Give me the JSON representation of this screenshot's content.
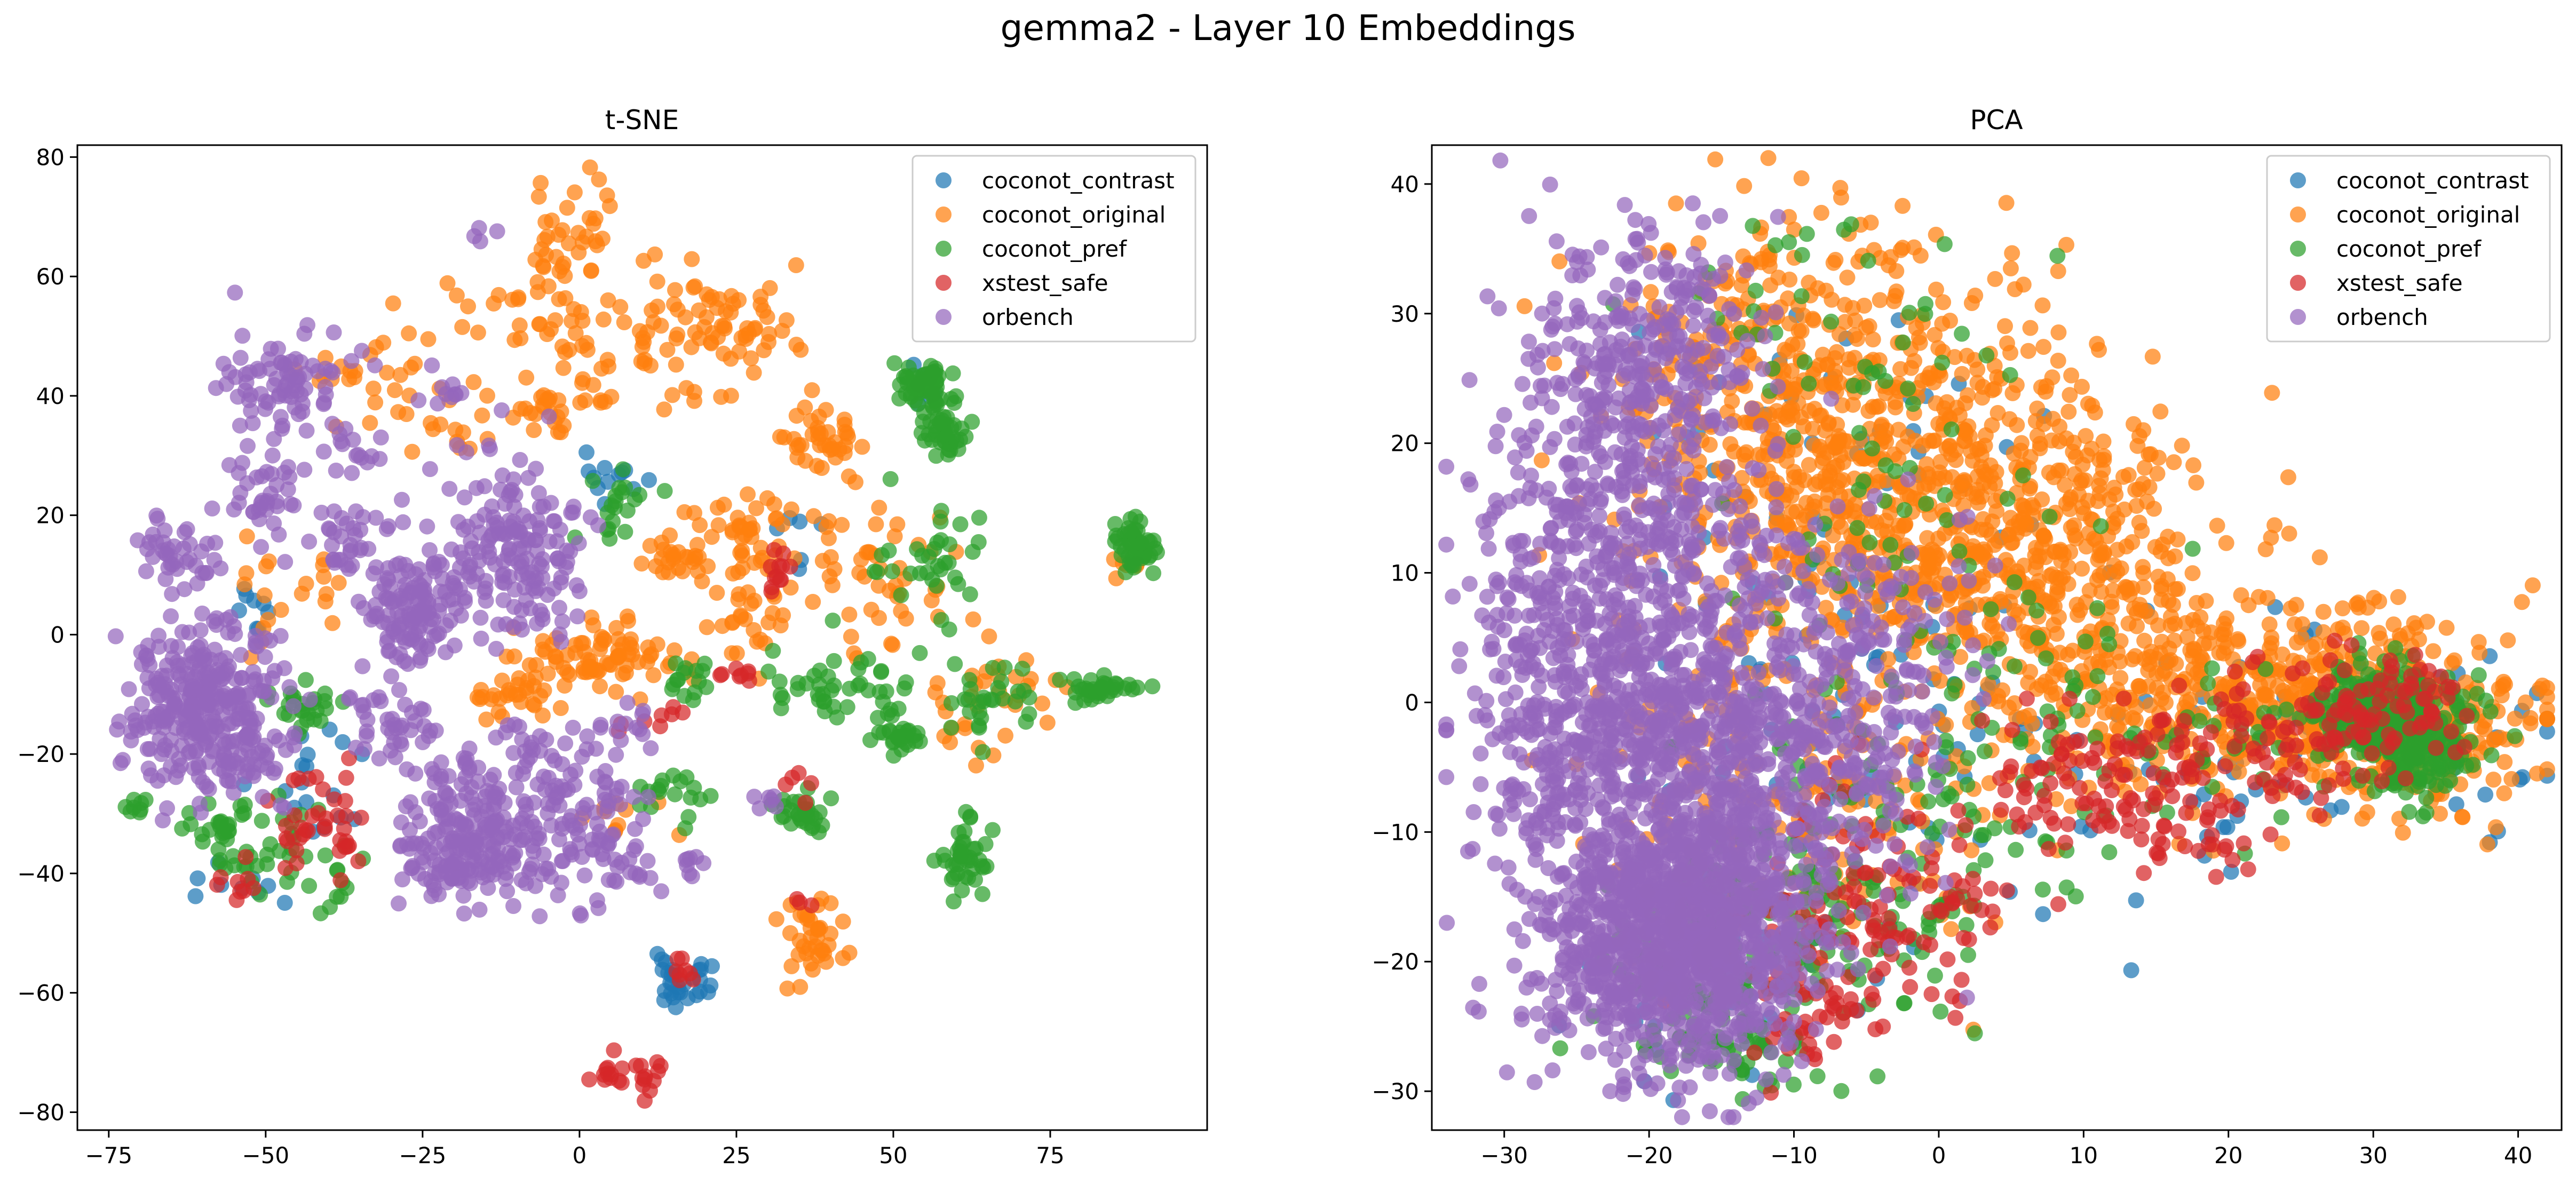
{
  "figure": {
    "title": "gemma2 - Layer 10 Embeddings"
  },
  "series_colors": {
    "coconot_contrast": "#1f77b4",
    "coconot_original": "#ff7f0e",
    "coconot_pref": "#2ca02c",
    "xstest_safe": "#d62728",
    "orbench": "#9467bd"
  },
  "chart_data": [
    {
      "type": "scatter",
      "title": "t-SNE",
      "xlabel": "",
      "ylabel": "",
      "xlim": [
        -80,
        100
      ],
      "ylim": [
        -83,
        82
      ],
      "xticks": [
        -75,
        -50,
        -25,
        0,
        25,
        50,
        75
      ],
      "xtick_labels": [
        "−75",
        "−50",
        "−25",
        "0",
        "25",
        "50",
        "75"
      ],
      "yticks": [
        -80,
        -60,
        -40,
        -20,
        0,
        20,
        40,
        60,
        80
      ],
      "ytick_labels": [
        "−80",
        "−60",
        "−40",
        "−20",
        "0",
        "20",
        "40",
        "60",
        "80"
      ],
      "grid": false,
      "legend_position": "top-right",
      "series": [
        {
          "name": "coconot_contrast",
          "clusters": [
            {
              "cx": 17,
              "cy": -58,
              "sx": 3,
              "sy": 2,
              "n": 30
            },
            {
              "cx": 5,
              "cy": 26,
              "sx": 3,
              "sy": 2,
              "n": 12
            },
            {
              "cx": -44,
              "cy": -25,
              "sx": 4,
              "sy": 6,
              "n": 18
            },
            {
              "cx": 56,
              "cy": 42,
              "sx": 2,
              "sy": 2,
              "n": 8
            },
            {
              "cx": -52,
              "cy": 2,
              "sx": 3,
              "sy": 3,
              "n": 8
            },
            {
              "cx": -55,
              "cy": -42,
              "sx": 3,
              "sy": 3,
              "n": 8
            },
            {
              "cx": 32,
              "cy": 15,
              "sx": 3,
              "sy": 3,
              "n": 6
            }
          ]
        },
        {
          "name": "coconot_original",
          "clusters": [
            {
              "cx": -2,
              "cy": 66,
              "sx": 3,
              "sy": 5,
              "n": 40
            },
            {
              "cx": -5,
              "cy": 52,
              "sx": 6,
              "sy": 4,
              "n": 35
            },
            {
              "cx": 14,
              "cy": 50,
              "sx": 6,
              "sy": 6,
              "n": 45
            },
            {
              "cx": 26,
              "cy": 52,
              "sx": 5,
              "sy": 6,
              "n": 40
            },
            {
              "cx": -32,
              "cy": 43,
              "sx": 6,
              "sy": 4,
              "n": 30
            },
            {
              "cx": -3,
              "cy": 38,
              "sx": 4,
              "sy": 3,
              "n": 30
            },
            {
              "cx": 38,
              "cy": 32,
              "sx": 3,
              "sy": 3,
              "n": 40
            },
            {
              "cx": 27,
              "cy": 18,
              "sx": 5,
              "sy": 4,
              "n": 50
            },
            {
              "cx": 4,
              "cy": -3,
              "sx": 7,
              "sy": 3,
              "n": 80
            },
            {
              "cx": -10,
              "cy": -10,
              "sx": 4,
              "sy": 2,
              "n": 30
            },
            {
              "cx": 15,
              "cy": 13,
              "sx": 3,
              "sy": 3,
              "n": 25
            },
            {
              "cx": 48,
              "cy": 10,
              "sx": 6,
              "sy": 6,
              "n": 45
            },
            {
              "cx": 37,
              "cy": -50,
              "sx": 3,
              "sy": 4,
              "n": 40
            },
            {
              "cx": 65,
              "cy": -12,
              "sx": 5,
              "sy": 6,
              "n": 35
            },
            {
              "cx": 88,
              "cy": 12,
              "sx": 2,
              "sy": 1,
              "n": 8
            },
            {
              "cx": 27,
              "cy": 2,
              "sx": 3,
              "sy": 3,
              "n": 25
            },
            {
              "cx": -45,
              "cy": 8,
              "sx": 6,
              "sy": 5,
              "n": 20
            },
            {
              "cx": -20,
              "cy": 35,
              "sx": 5,
              "sy": 3,
              "n": 15
            },
            {
              "cx": 8,
              "cy": -30,
              "sx": 3,
              "sy": 3,
              "n": 10
            }
          ]
        },
        {
          "name": "coconot_pref",
          "clusters": [
            {
              "cx": 55,
              "cy": 42,
              "sx": 2,
              "sy": 2,
              "n": 60
            },
            {
              "cx": 58,
              "cy": 34,
              "sx": 2,
              "sy": 2,
              "n": 40
            },
            {
              "cx": 88,
              "cy": 15,
              "sx": 2,
              "sy": 2,
              "n": 50
            },
            {
              "cx": 61,
              "cy": -37,
              "sx": 2,
              "sy": 3,
              "n": 40
            },
            {
              "cx": 83,
              "cy": -9,
              "sx": 3,
              "sy": 1,
              "n": 35
            },
            {
              "cx": 36,
              "cy": -30,
              "sx": 2,
              "sy": 2,
              "n": 30
            },
            {
              "cx": 51,
              "cy": -17,
              "sx": 2,
              "sy": 1,
              "n": 25
            },
            {
              "cx": -57,
              "cy": -33,
              "sx": 3,
              "sy": 3,
              "n": 35
            },
            {
              "cx": -44,
              "cy": -13,
              "sx": 3,
              "sy": 3,
              "n": 25
            },
            {
              "cx": 55,
              "cy": 12,
              "sx": 5,
              "sy": 5,
              "n": 35
            },
            {
              "cx": 65,
              "cy": -12,
              "sx": 4,
              "sy": 4,
              "n": 30
            },
            {
              "cx": 38,
              "cy": -7,
              "sx": 4,
              "sy": 4,
              "n": 30
            },
            {
              "cx": 18,
              "cy": -8,
              "sx": 2,
              "sy": 2,
              "n": 15
            },
            {
              "cx": 6,
              "cy": 22,
              "sx": 3,
              "sy": 4,
              "n": 20
            },
            {
              "cx": 15,
              "cy": -27,
              "sx": 3,
              "sy": 2,
              "n": 18
            },
            {
              "cx": -72,
              "cy": -29,
              "sx": 2,
              "sy": 1,
              "n": 8
            },
            {
              "cx": -45,
              "cy": -38,
              "sx": 6,
              "sy": 5,
              "n": 30
            },
            {
              "cx": 48,
              "cy": -10,
              "sx": 3,
              "sy": 3,
              "n": 15
            }
          ]
        },
        {
          "name": "xstest_safe",
          "clusters": [
            {
              "cx": 5,
              "cy": -74,
              "sx": 1.5,
              "sy": 1.5,
              "n": 12
            },
            {
              "cx": 11,
              "cy": -74,
              "sx": 1,
              "sy": 2,
              "n": 12
            },
            {
              "cx": 17,
              "cy": -56,
              "sx": 1.5,
              "sy": 2,
              "n": 8
            },
            {
              "cx": -40,
              "cy": -31,
              "sx": 4,
              "sy": 5,
              "n": 40
            },
            {
              "cx": 32,
              "cy": 10,
              "sx": 2,
              "sy": 3,
              "n": 12
            },
            {
              "cx": 25,
              "cy": -7,
              "sx": 2,
              "sy": 2,
              "n": 8
            },
            {
              "cx": 13,
              "cy": -14,
              "sx": 3,
              "sy": 1,
              "n": 8
            },
            {
              "cx": -55,
              "cy": -43,
              "sx": 2,
              "sy": 2,
              "n": 8
            },
            {
              "cx": 35,
              "cy": -24,
              "sx": 2,
              "sy": 2,
              "n": 5
            },
            {
              "cx": 36,
              "cy": -45,
              "sx": 1,
              "sy": 1,
              "n": 3
            }
          ]
        },
        {
          "name": "orbench",
          "clusters": [
            {
              "cx": -60,
              "cy": -12,
              "sx": 6,
              "sy": 7,
              "n": 320
            },
            {
              "cx": -11,
              "cy": 14,
              "sx": 6,
              "sy": 8,
              "n": 180
            },
            {
              "cx": -27,
              "cy": 4,
              "sx": 4,
              "sy": 5,
              "n": 120
            },
            {
              "cx": -17,
              "cy": -35,
              "sx": 6,
              "sy": 5,
              "n": 200
            },
            {
              "cx": 0,
              "cy": -30,
              "sx": 5,
              "sy": 7,
              "n": 100
            },
            {
              "cx": -48,
              "cy": 42,
              "sx": 5,
              "sy": 4,
              "n": 80
            },
            {
              "cx": -65,
              "cy": 13,
              "sx": 3,
              "sy": 3,
              "n": 40
            },
            {
              "cx": -38,
              "cy": 16,
              "sx": 3,
              "sy": 3,
              "n": 30
            },
            {
              "cx": -50,
              "cy": 24,
              "sx": 4,
              "sy": 4,
              "n": 40
            },
            {
              "cx": -31,
              "cy": -14,
              "sx": 4,
              "sy": 4,
              "n": 40
            },
            {
              "cx": -8,
              "cy": -20,
              "sx": 3,
              "sy": 3,
              "n": 25
            },
            {
              "cx": 8,
              "cy": -38,
              "sx": 3,
              "sy": 2,
              "n": 12
            },
            {
              "cx": 18,
              "cy": -39,
              "sx": 1,
              "sy": 1,
              "n": 8
            },
            {
              "cx": -22,
              "cy": -23,
              "sx": 3,
              "sy": 2,
              "n": 20
            },
            {
              "cx": -35,
              "cy": 31,
              "sx": 3,
              "sy": 2,
              "n": 15
            },
            {
              "cx": -20,
              "cy": 41,
              "sx": 2,
              "sy": 2,
              "n": 10
            },
            {
              "cx": -15,
              "cy": 67,
              "sx": 1,
              "sy": 1,
              "n": 4
            },
            {
              "cx": 30,
              "cy": -28,
              "sx": 1,
              "sy": 1,
              "n": 6
            },
            {
              "cx": 8,
              "cy": -16,
              "sx": 4,
              "sy": 3,
              "n": 15
            },
            {
              "cx": -52,
              "cy": -22,
              "sx": 4,
              "sy": 3,
              "n": 20
            }
          ]
        }
      ]
    },
    {
      "type": "scatter",
      "title": "PCA",
      "xlabel": "",
      "ylabel": "",
      "xlim": [
        -35,
        43
      ],
      "ylim": [
        -33,
        43
      ],
      "xticks": [
        -30,
        -20,
        -10,
        0,
        10,
        20,
        30,
        40
      ],
      "xtick_labels": [
        "−30",
        "−20",
        "−10",
        "0",
        "10",
        "20",
        "30",
        "40"
      ],
      "yticks": [
        -30,
        -20,
        -10,
        0,
        10,
        20,
        30,
        40
      ],
      "ytick_labels": [
        "−30",
        "−20",
        "−10",
        "0",
        "10",
        "20",
        "30",
        "40"
      ],
      "grid": false,
      "legend_position": "top-right",
      "series": [
        {
          "name": "coconot_contrast",
          "clusters": [
            {
              "cx": 25,
              "cy": -3,
              "sx": 10,
              "sy": 4,
              "n": 80
            },
            {
              "cx": 0,
              "cy": -2,
              "sx": 10,
              "sy": 8,
              "n": 80
            },
            {
              "cx": -8,
              "cy": 20,
              "sx": 8,
              "sy": 8,
              "n": 40
            },
            {
              "cx": -15,
              "cy": -18,
              "sx": 5,
              "sy": 5,
              "n": 40
            }
          ]
        },
        {
          "name": "coconot_original",
          "clusters": [
            {
              "cx": -3,
              "cy": 18,
              "sx": 7,
              "sy": 8,
              "n": 550
            },
            {
              "cx": 8,
              "cy": 10,
              "sx": 7,
              "sy": 6,
              "n": 400
            },
            {
              "cx": 22,
              "cy": 0,
              "sx": 8,
              "sy": 4,
              "n": 450
            },
            {
              "cx": 33,
              "cy": -2,
              "sx": 4,
              "sy": 3,
              "n": 200
            },
            {
              "cx": -12,
              "cy": 25,
              "sx": 6,
              "sy": 7,
              "n": 250
            },
            {
              "cx": -12,
              "cy": 0,
              "sx": 6,
              "sy": 10,
              "n": 150
            },
            {
              "cx": -5,
              "cy": -10,
              "sx": 7,
              "sy": 5,
              "n": 60
            }
          ]
        },
        {
          "name": "coconot_pref",
          "clusters": [
            {
              "cx": 31,
              "cy": -1,
              "sx": 2.5,
              "sy": 2,
              "n": 260
            },
            {
              "cx": 33,
              "cy": -4,
              "sx": 2,
              "sy": 2,
              "n": 100
            },
            {
              "cx": -15,
              "cy": -20,
              "sx": 4,
              "sy": 4,
              "n": 120
            },
            {
              "cx": -6,
              "cy": -14,
              "sx": 6,
              "sy": 5,
              "n": 120
            },
            {
              "cx": 2,
              "cy": 0,
              "sx": 8,
              "sy": 8,
              "n": 100
            },
            {
              "cx": -14,
              "cy": -27,
              "sx": 3,
              "sy": 2,
              "n": 40
            },
            {
              "cx": -6,
              "cy": 25,
              "sx": 6,
              "sy": 8,
              "n": 60
            },
            {
              "cx": 20,
              "cy": -3,
              "sx": 7,
              "sy": 3,
              "n": 40
            }
          ]
        },
        {
          "name": "xstest_safe",
          "clusters": [
            {
              "cx": 12,
              "cy": -6,
              "sx": 4,
              "sy": 3,
              "n": 100
            },
            {
              "cx": 24,
              "cy": -3,
              "sx": 4,
              "sy": 3,
              "n": 90
            },
            {
              "cx": 32,
              "cy": 0,
              "sx": 3,
              "sy": 2,
              "n": 60
            },
            {
              "cx": -3,
              "cy": -15,
              "sx": 4,
              "sy": 4,
              "n": 100
            },
            {
              "cx": -8,
              "cy": -22,
              "sx": 3,
              "sy": 3,
              "n": 60
            },
            {
              "cx": 18,
              "cy": -10,
              "sx": 3,
              "sy": 2,
              "n": 25
            }
          ]
        },
        {
          "name": "orbench",
          "clusters": [
            {
              "cx": -17,
              "cy": -18,
              "sx": 4,
              "sy": 5,
              "n": 900
            },
            {
              "cx": -19,
              "cy": -5,
              "sx": 6,
              "sy": 8,
              "n": 700
            },
            {
              "cx": -21,
              "cy": 12,
              "sx": 5,
              "sy": 9,
              "n": 500
            },
            {
              "cx": -20,
              "cy": 28,
              "sx": 4,
              "sy": 5,
              "n": 200
            },
            {
              "cx": -28,
              "cy": 2,
              "sx": 2.5,
              "sy": 10,
              "n": 150
            },
            {
              "cx": -10,
              "cy": -5,
              "sx": 5,
              "sy": 6,
              "n": 250
            },
            {
              "cx": -6,
              "cy": 5,
              "sx": 4,
              "sy": 4,
              "n": 120
            },
            {
              "cx": -24,
              "cy": -20,
              "sx": 3,
              "sy": 4,
              "n": 120
            }
          ]
        }
      ]
    }
  ]
}
